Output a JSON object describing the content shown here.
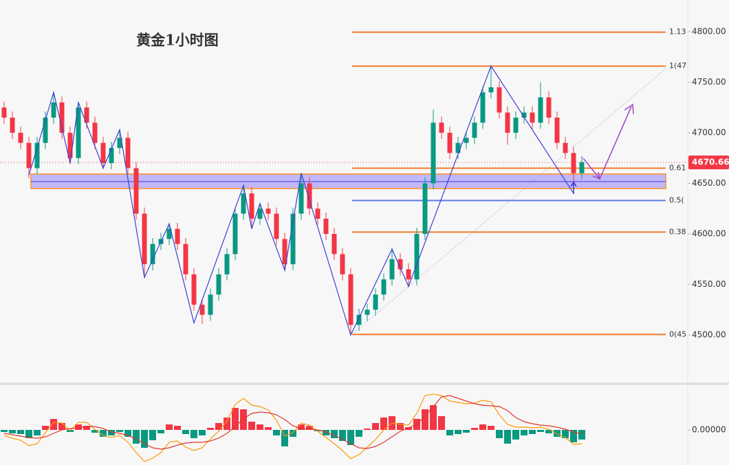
{
  "chart_data": {
    "type": "candlestick",
    "title": "黄金1小时图",
    "title_color": "#a23fc0",
    "up_color": "#089981",
    "down_color": "#f23645",
    "ylim": [
      4452.4,
      4831.3
    ],
    "yticks": [
      {
        "value": 4500,
        "label": "4500.00"
      },
      {
        "value": 4550,
        "label": "4550.00"
      },
      {
        "value": 4600,
        "label": "4600.00"
      },
      {
        "value": 4650,
        "label": "4650.00"
      },
      {
        "value": 4700,
        "label": "4700.00"
      },
      {
        "value": 4750,
        "label": "4750.00"
      },
      {
        "value": 4800,
        "label": "4800.00"
      }
    ],
    "last_price": 4670.66,
    "last_price_color": "#f23645",
    "candles": [
      [
        4725,
        4731,
        4709,
        4715
      ],
      [
        4715,
        4721,
        4694,
        4700
      ],
      [
        4700,
        4706,
        4684,
        4690
      ],
      [
        4690,
        4696,
        4655,
        4665
      ],
      [
        4665,
        4696,
        4659,
        4690
      ],
      [
        4690,
        4721,
        4684,
        4715
      ],
      [
        4715,
        4741,
        4709,
        4730
      ],
      [
        4730,
        4736,
        4694,
        4700
      ],
      [
        4700,
        4706,
        4669,
        4675
      ],
      [
        4675,
        4731,
        4669,
        4725
      ],
      [
        4725,
        4731,
        4704,
        4710
      ],
      [
        4710,
        4716,
        4684,
        4690
      ],
      [
        4690,
        4696,
        4664,
        4670
      ],
      [
        4670,
        4691,
        4664,
        4685
      ],
      [
        4685,
        4703,
        4679,
        4695
      ],
      [
        4695,
        4701,
        4659,
        4665
      ],
      [
        4665,
        4671,
        4614,
        4620
      ],
      [
        4620,
        4626,
        4556,
        4570
      ],
      [
        4570,
        4596,
        4564,
        4590
      ],
      [
        4590,
        4601,
        4584,
        4595
      ],
      [
        4595,
        4611,
        4589,
        4605
      ],
      [
        4605,
        4611,
        4584,
        4590
      ],
      [
        4590,
        4596,
        4554,
        4560
      ],
      [
        4560,
        4566,
        4524,
        4530
      ],
      [
        4530,
        4536,
        4511,
        4520
      ],
      [
        4520,
        4546,
        4514,
        4540
      ],
      [
        4540,
        4566,
        4534,
        4560
      ],
      [
        4560,
        4586,
        4554,
        4580
      ],
      [
        4580,
        4626,
        4574,
        4620
      ],
      [
        4620,
        4649,
        4614,
        4640
      ],
      [
        4640,
        4646,
        4605,
        4615
      ],
      [
        4615,
        4631,
        4609,
        4625
      ],
      [
        4625,
        4631,
        4614,
        4620
      ],
      [
        4620,
        4626,
        4589,
        4595
      ],
      [
        4595,
        4601,
        4563,
        4570
      ],
      [
        4570,
        4626,
        4564,
        4620
      ],
      [
        4620,
        4660,
        4614,
        4650
      ],
      [
        4650,
        4656,
        4619,
        4625
      ],
      [
        4625,
        4631,
        4609,
        4615
      ],
      [
        4615,
        4621,
        4594,
        4600
      ],
      [
        4600,
        4606,
        4574,
        4580
      ],
      [
        4580,
        4586,
        4554,
        4560
      ],
      [
        4560,
        4566,
        4500,
        4510
      ],
      [
        4510,
        4526,
        4504,
        4520
      ],
      [
        4520,
        4531,
        4514,
        4525
      ],
      [
        4525,
        4546,
        4519,
        4540
      ],
      [
        4540,
        4561,
        4534,
        4555
      ],
      [
        4555,
        4586,
        4549,
        4575
      ],
      [
        4575,
        4581,
        4559,
        4565
      ],
      [
        4565,
        4571,
        4547,
        4555
      ],
      [
        4555,
        4606,
        4549,
        4600
      ],
      [
        4600,
        4656,
        4594,
        4650
      ],
      [
        4650,
        4723,
        4644,
        4710
      ],
      [
        4710,
        4716,
        4694,
        4700
      ],
      [
        4700,
        4706,
        4674,
        4680
      ],
      [
        4680,
        4696,
        4674,
        4690
      ],
      [
        4690,
        4701,
        4684,
        4695
      ],
      [
        4695,
        4716,
        4689,
        4710
      ],
      [
        4710,
        4746,
        4704,
        4740
      ],
      [
        4740,
        4766,
        4734,
        4745
      ],
      [
        4745,
        4751,
        4714,
        4720
      ],
      [
        4720,
        4726,
        4688,
        4700
      ],
      [
        4700,
        4721,
        4694,
        4715
      ],
      [
        4715,
        4726,
        4709,
        4720
      ],
      [
        4720,
        4726,
        4704,
        4710
      ],
      [
        4710,
        4750,
        4704,
        4735
      ],
      [
        4735,
        4741,
        4709,
        4715
      ],
      [
        4715,
        4721,
        4684,
        4690
      ],
      [
        4690,
        4696,
        4674,
        4680
      ],
      [
        4680,
        4686,
        4640,
        4660
      ],
      [
        4660,
        4677,
        4654,
        4671
      ]
    ],
    "zigzag": [
      [
        3,
        4658
      ],
      [
        6,
        4740
      ],
      [
        8,
        4670
      ],
      [
        9,
        4730
      ],
      [
        12,
        4665
      ],
      [
        14,
        4703
      ],
      [
        17,
        4557
      ],
      [
        20,
        4610
      ],
      [
        23,
        4512
      ],
      [
        29,
        4648
      ],
      [
        30,
        4605
      ],
      [
        31,
        4630
      ],
      [
        34,
        4564
      ],
      [
        36,
        4660
      ],
      [
        42,
        4500
      ],
      [
        47,
        4585
      ],
      [
        49,
        4548
      ],
      [
        59,
        4766
      ],
      [
        69,
        4640
      ]
    ],
    "zigzag_color": "#3a3fd6",
    "fib_levels": [
      {
        "label": "1.13",
        "value": 4799.5,
        "color": "#f57c2c"
      },
      {
        "label": "1(47",
        "value": 4765.9,
        "color": "#f57c2c"
      },
      {
        "label": "0.61",
        "value": 4665,
        "color": "#f57c2c"
      },
      {
        "label": "0.5(",
        "value": 4633,
        "color": "#5b7be6"
      },
      {
        "label": "0.38",
        "value": 4601.8,
        "color": "#f57c2c"
      },
      {
        "label": "0(45",
        "value": 4500.5,
        "color": "#f57c2c"
      }
    ],
    "zone": {
      "low": 4644.9,
      "high": 4659.2,
      "mid": 4651.7
    },
    "indicator": {
      "type": "macd",
      "ylim": [
        -5.1,
        6.5
      ],
      "yticks": [
        {
          "value": 0,
          "label": "0.00000"
        }
      ],
      "positive_color": "#f23645",
      "negative_color": "#089981",
      "macd_color": "#ff9800",
      "signal_color": "#e0352b",
      "histogram": [
        -0.3,
        -0.5,
        -0.6,
        -1.2,
        -0.8,
        0.6,
        1.6,
        1.0,
        -0.3,
        0.8,
        0.6,
        -0.4,
        -1.0,
        -0.8,
        -0.3,
        -1.0,
        -2.0,
        -2.6,
        -1.5,
        -0.5,
        0.8,
        0.6,
        -0.6,
        -1.2,
        -0.8,
        0.3,
        1.0,
        1.8,
        3.2,
        3.0,
        1.2,
        0.8,
        0.4,
        -0.8,
        -2.4,
        -1.0,
        0.8,
        0.6,
        -0.2,
        -0.8,
        -1.2,
        -1.6,
        -2.2,
        -1.0,
        0.2,
        1.0,
        1.8,
        2.0,
        1.0,
        0.4,
        1.6,
        3.0,
        3.6,
        2.0,
        -0.8,
        -0.6,
        -0.4,
        0.3,
        0.8,
        0.6,
        -1.2,
        -2.0,
        -1.4,
        -0.8,
        -0.6,
        -0.3,
        -0.5,
        -1.0,
        -1.2,
        -1.8,
        -1.4
      ],
      "macd": [
        -0.8,
        -1.2,
        -1.5,
        -2.3,
        -2.0,
        -0.4,
        1.1,
        1.0,
        -0.1,
        1.1,
        1.1,
        0.1,
        -0.8,
        -1.1,
        -0.8,
        -1.8,
        -3.3,
        -4.6,
        -4.1,
        -3.3,
        -1.8,
        -1.6,
        -2.5,
        -3.0,
        -2.6,
        -1.3,
        -0.2,
        1.3,
        3.7,
        4.6,
        3.6,
        3.4,
        2.9,
        1.4,
        -0.9,
        -0.4,
        1.0,
        0.7,
        -0.2,
        -1.1,
        -2.0,
        -3.0,
        -4.2,
        -3.6,
        -2.5,
        -1.4,
        0.0,
        1.0,
        0.8,
        0.7,
        2.4,
        5.0,
        5.2,
        5.0,
        4.2,
        4.0,
        3.8,
        3.9,
        4.3,
        4.1,
        2.2,
        0.8,
        0.4,
        0.4,
        0.3,
        0.4,
        0.1,
        -0.6,
        -1.1,
        -2.1,
        -2.0
      ],
      "signal": [
        -0.5,
        -0.7,
        -0.9,
        -1.1,
        -1.2,
        -1.0,
        -0.5,
        0.0,
        0.2,
        0.3,
        0.5,
        0.5,
        0.2,
        -0.3,
        -0.5,
        -0.8,
        -1.3,
        -2.0,
        -2.6,
        -2.8,
        -2.6,
        -2.2,
        -1.9,
        -1.8,
        -1.8,
        -1.6,
        -1.2,
        -0.5,
        0.5,
        1.6,
        2.4,
        2.6,
        2.5,
        2.2,
        1.5,
        0.6,
        0.2,
        0.1,
        0.0,
        -0.3,
        -0.8,
        -1.4,
        -2.0,
        -2.6,
        -2.7,
        -2.4,
        -1.8,
        -1.0,
        -0.2,
        0.3,
        0.8,
        2.0,
        3.4,
        4.8,
        5.0,
        4.6,
        4.2,
        3.8,
        3.6,
        3.5,
        3.4,
        2.8,
        1.8,
        1.2,
        0.9,
        0.7,
        0.6,
        0.4,
        0.1,
        -0.3,
        -0.6
      ]
    }
  }
}
